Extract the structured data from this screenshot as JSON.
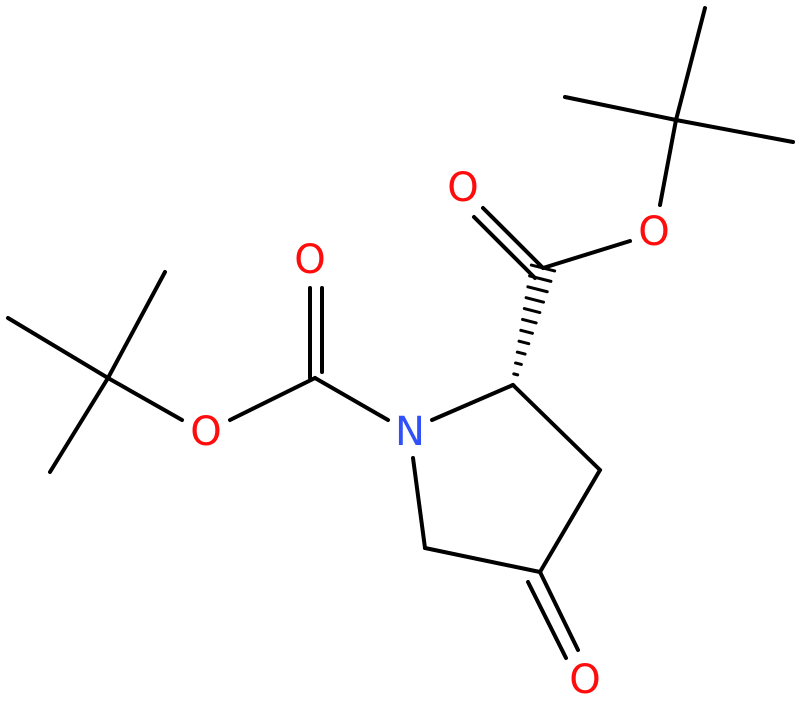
{
  "atoms": [
    {
      "label": "O"
    },
    {
      "label": "O"
    },
    {
      "label": "O"
    },
    {
      "label": "O"
    },
    {
      "label": "N"
    },
    {
      "label": "O"
    }
  ]
}
